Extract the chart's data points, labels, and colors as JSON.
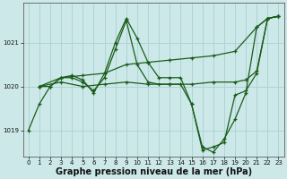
{
  "bg_color": "#cce8e8",
  "grid_color": "#aed4d4",
  "line_color": "#1a5c1a",
  "marker_color": "#1a5c1a",
  "xlabel": "Graphe pression niveau de la mer (hPa)",
  "xlabel_fontsize": 7,
  "xlim": [
    -0.5,
    23.5
  ],
  "ylim": [
    1018.4,
    1021.9
  ],
  "yticks": [
    1019,
    1020,
    1021
  ],
  "xticks": [
    0,
    1,
    2,
    3,
    4,
    5,
    6,
    7,
    8,
    9,
    10,
    11,
    12,
    13,
    14,
    15,
    16,
    17,
    18,
    19,
    20,
    21,
    22,
    23
  ],
  "series": [
    {
      "x": [
        0,
        1,
        2,
        3,
        4,
        5,
        6,
        7,
        8,
        9,
        10,
        11,
        12,
        13,
        14,
        15,
        16,
        17,
        18,
        19,
        20,
        21,
        22,
        23
      ],
      "y": [
        1019.0,
        1019.6,
        1020.0,
        1020.2,
        1020.25,
        1020.15,
        1019.85,
        1020.3,
        1021.0,
        1021.55,
        1021.1,
        1020.55,
        1020.2,
        1020.2,
        1020.2,
        1019.6,
        1018.62,
        1018.5,
        1018.8,
        1019.25,
        1019.85,
        1021.35,
        1021.55,
        1021.6
      ]
    },
    {
      "x": [
        1,
        2,
        3,
        4,
        5,
        6,
        7,
        8,
        9,
        10,
        11,
        12,
        13,
        14,
        15,
        16,
        17,
        18,
        19,
        20,
        21,
        22,
        23
      ],
      "y": [
        1020.0,
        1020.0,
        1020.2,
        1020.2,
        1020.1,
        1019.9,
        1020.2,
        1020.85,
        1021.5,
        1020.5,
        1020.1,
        1020.05,
        1020.05,
        1020.05,
        1019.6,
        1018.55,
        1018.62,
        1018.72,
        1019.8,
        1019.9,
        1020.3,
        1021.55,
        1021.6
      ]
    },
    {
      "x": [
        1,
        3,
        5,
        7,
        9,
        11,
        13,
        15,
        17,
        19,
        21,
        22,
        23
      ],
      "y": [
        1020.0,
        1020.2,
        1020.25,
        1020.3,
        1020.5,
        1020.55,
        1020.6,
        1020.65,
        1020.7,
        1020.8,
        1021.35,
        1021.55,
        1021.6
      ]
    },
    {
      "x": [
        1,
        3,
        5,
        7,
        9,
        11,
        13,
        15,
        17,
        19,
        20,
        21,
        22,
        23
      ],
      "y": [
        1020.0,
        1020.1,
        1020.0,
        1020.05,
        1020.1,
        1020.05,
        1020.05,
        1020.05,
        1020.1,
        1020.1,
        1020.15,
        1020.35,
        1021.55,
        1021.6
      ]
    }
  ]
}
